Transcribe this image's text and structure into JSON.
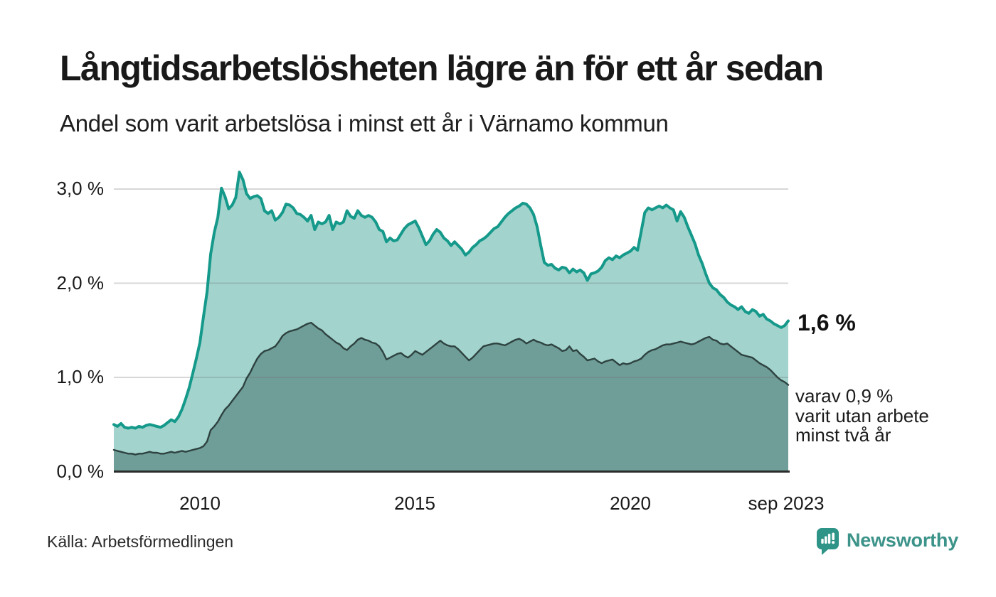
{
  "header": {
    "title": "Långtidsarbetslösheten lägre än för ett år sedan",
    "subtitle": "Andel som varit arbetslösa i minst ett år i Värnamo kommun"
  },
  "chart_data": {
    "type": "area",
    "title": "Långtidsarbetslösheten lägre än för ett år sedan",
    "subtitle": "Andel som varit arbetslösa i minst ett år i Värnamo kommun",
    "unit": "%",
    "x_unit": "month",
    "x_start": "jan 2008",
    "x_end": "sep 2023",
    "ylim": [
      0,
      3.3
    ],
    "grid": true,
    "legend": "none",
    "y_ticks": [
      "3,0 %",
      "2,0 %",
      "1,0 %",
      "0,0 %"
    ],
    "y_tick_values": [
      3,
      2,
      1,
      0
    ],
    "x_ticks": [
      "2010",
      "2015",
      "2020",
      "sep 2023"
    ],
    "colors": {
      "grid": "rgba(110,110,110,0.28)",
      "axis": "#2b2b2b",
      "background": "#ffffff"
    },
    "series": [
      {
        "name": "arbetslösa minst ett år",
        "color": "#15998a",
        "fill": "#a2d4cd",
        "last_value_label": "1,6 %",
        "values": [
          0.5,
          0.48,
          0.51,
          0.47,
          0.46,
          0.47,
          0.46,
          0.48,
          0.47,
          0.49,
          0.5,
          0.49,
          0.48,
          0.47,
          0.49,
          0.52,
          0.55,
          0.53,
          0.58,
          0.66,
          0.77,
          0.89,
          1.04,
          1.2,
          1.37,
          1.65,
          1.91,
          2.31,
          2.54,
          2.7,
          3.01,
          2.92,
          2.79,
          2.83,
          2.91,
          3.18,
          3.1,
          2.95,
          2.9,
          2.92,
          2.93,
          2.9,
          2.77,
          2.74,
          2.77,
          2.67,
          2.7,
          2.75,
          2.84,
          2.83,
          2.8,
          2.74,
          2.73,
          2.7,
          2.66,
          2.72,
          2.57,
          2.65,
          2.63,
          2.65,
          2.72,
          2.57,
          2.65,
          2.63,
          2.65,
          2.77,
          2.71,
          2.69,
          2.77,
          2.72,
          2.7,
          2.72,
          2.7,
          2.65,
          2.57,
          2.55,
          2.44,
          2.48,
          2.45,
          2.46,
          2.52,
          2.58,
          2.62,
          2.64,
          2.66,
          2.59,
          2.5,
          2.41,
          2.45,
          2.52,
          2.57,
          2.54,
          2.48,
          2.45,
          2.4,
          2.44,
          2.4,
          2.36,
          2.3,
          2.33,
          2.38,
          2.41,
          2.45,
          2.47,
          2.5,
          2.54,
          2.58,
          2.6,
          2.65,
          2.7,
          2.74,
          2.77,
          2.8,
          2.82,
          2.85,
          2.84,
          2.8,
          2.73,
          2.6,
          2.4,
          2.22,
          2.19,
          2.2,
          2.16,
          2.14,
          2.17,
          2.16,
          2.11,
          2.15,
          2.12,
          2.14,
          2.11,
          2.03,
          2.1,
          2.11,
          2.13,
          2.17,
          2.24,
          2.27,
          2.25,
          2.29,
          2.27,
          2.3,
          2.32,
          2.34,
          2.38,
          2.35,
          2.55,
          2.75,
          2.8,
          2.78,
          2.8,
          2.82,
          2.8,
          2.83,
          2.8,
          2.78,
          2.66,
          2.76,
          2.7,
          2.6,
          2.51,
          2.42,
          2.3,
          2.21,
          2.1,
          2.0,
          1.95,
          1.93,
          1.88,
          1.85,
          1.8,
          1.77,
          1.75,
          1.72,
          1.75,
          1.7,
          1.68,
          1.72,
          1.7,
          1.65,
          1.67,
          1.62,
          1.6,
          1.57,
          1.55,
          1.53,
          1.55,
          1.6
        ]
      },
      {
        "name": "utan arbete minst två år",
        "color": "#2e4240",
        "fill": "#6f9d98",
        "last_value_label": "0,9 %",
        "values": [
          0.23,
          0.22,
          0.21,
          0.2,
          0.19,
          0.19,
          0.18,
          0.19,
          0.19,
          0.2,
          0.21,
          0.2,
          0.2,
          0.19,
          0.19,
          0.2,
          0.21,
          0.2,
          0.21,
          0.22,
          0.21,
          0.22,
          0.23,
          0.24,
          0.25,
          0.27,
          0.32,
          0.44,
          0.48,
          0.53,
          0.6,
          0.66,
          0.7,
          0.75,
          0.8,
          0.85,
          0.9,
          0.99,
          1.05,
          1.13,
          1.2,
          1.25,
          1.28,
          1.29,
          1.31,
          1.33,
          1.38,
          1.44,
          1.47,
          1.49,
          1.5,
          1.51,
          1.53,
          1.55,
          1.57,
          1.58,
          1.55,
          1.52,
          1.5,
          1.46,
          1.43,
          1.4,
          1.37,
          1.35,
          1.31,
          1.29,
          1.33,
          1.36,
          1.4,
          1.42,
          1.4,
          1.39,
          1.37,
          1.36,
          1.33,
          1.27,
          1.19,
          1.21,
          1.23,
          1.25,
          1.26,
          1.23,
          1.21,
          1.24,
          1.28,
          1.26,
          1.24,
          1.27,
          1.3,
          1.33,
          1.36,
          1.39,
          1.36,
          1.34,
          1.33,
          1.33,
          1.3,
          1.26,
          1.22,
          1.18,
          1.21,
          1.25,
          1.29,
          1.33,
          1.34,
          1.35,
          1.36,
          1.36,
          1.35,
          1.34,
          1.36,
          1.38,
          1.4,
          1.41,
          1.39,
          1.36,
          1.38,
          1.4,
          1.38,
          1.37,
          1.35,
          1.34,
          1.35,
          1.33,
          1.31,
          1.28,
          1.29,
          1.33,
          1.28,
          1.29,
          1.25,
          1.22,
          1.18,
          1.19,
          1.2,
          1.17,
          1.15,
          1.17,
          1.18,
          1.19,
          1.16,
          1.13,
          1.15,
          1.14,
          1.15,
          1.17,
          1.18,
          1.2,
          1.24,
          1.27,
          1.29,
          1.3,
          1.32,
          1.34,
          1.35,
          1.35,
          1.36,
          1.37,
          1.38,
          1.37,
          1.36,
          1.35,
          1.36,
          1.38,
          1.4,
          1.42,
          1.43,
          1.4,
          1.39,
          1.36,
          1.35,
          1.36,
          1.33,
          1.3,
          1.27,
          1.24,
          1.23,
          1.22,
          1.21,
          1.18,
          1.15,
          1.13,
          1.11,
          1.08,
          1.04,
          1.0,
          0.97,
          0.95,
          0.92
        ]
      }
    ]
  },
  "annotations": {
    "end_value": "1,6 %",
    "secondary": [
      "varav 0,9 %",
      "varit utan arbete",
      "minst två år"
    ]
  },
  "footer": {
    "source": "Källa: Arbetsförmedlingen",
    "brand": "Newsworthy"
  }
}
